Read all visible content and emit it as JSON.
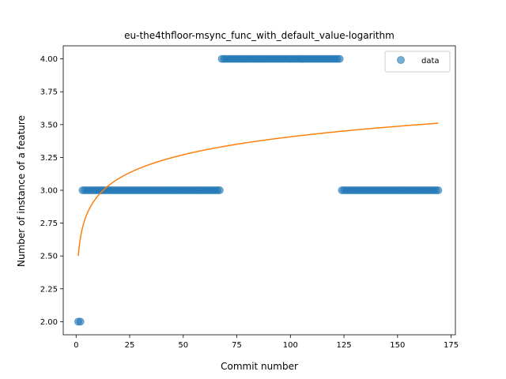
{
  "chart_data": {
    "type": "scatter",
    "title": "eu-the4thfloor-msync_func_with_default_value-logarithm",
    "xlabel": "Commit number",
    "ylabel": "Number of instance of a feature",
    "xlim": [
      -6,
      177
    ],
    "ylim": [
      1.9,
      4.1
    ],
    "xticks": [
      0,
      25,
      50,
      75,
      100,
      125,
      150,
      175
    ],
    "xtick_labels": [
      "0",
      "25",
      "50",
      "75",
      "100",
      "125",
      "150",
      "175"
    ],
    "yticks": [
      2.0,
      2.25,
      2.5,
      2.75,
      3.0,
      3.25,
      3.5,
      3.75,
      4.0
    ],
    "ytick_labels": [
      "2.00",
      "2.25",
      "2.50",
      "2.75",
      "3.00",
      "3.25",
      "3.50",
      "3.75",
      "4.00"
    ],
    "grid": false,
    "legend_position": "upper right",
    "series": [
      {
        "name": "data",
        "kind": "scatter",
        "color": "#1f77b4",
        "segments": [
          {
            "x_from": 1,
            "x_to": 2,
            "y": 2
          },
          {
            "x_from": 3,
            "x_to": 67,
            "y": 3
          },
          {
            "x_from": 68,
            "x_to": 123,
            "y": 4
          },
          {
            "x_from": 124,
            "x_to": 169,
            "y": 3
          }
        ]
      },
      {
        "kind": "line",
        "color": "#ff7f0e",
        "model": "logarithmic",
        "a": 2.5,
        "b": 0.197,
        "x_from": 1,
        "x_to": 169
      }
    ],
    "legend_entries": [
      "data"
    ]
  }
}
